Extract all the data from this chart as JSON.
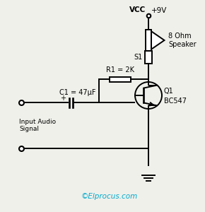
{
  "bg_color": "#f0f0eb",
  "line_color": "black",
  "text_color": "black",
  "cyan_color": "#00aacc",
  "watermark": "©Elprocus.com",
  "vcc_label": "VCC",
  "vcc_voltage": "+9V",
  "speaker_label": "8 Ohm\nSpeaker",
  "switch_label": "S1",
  "resistor_label": "R1 = 2K",
  "capacitor_label": "C1 = 47μF",
  "transistor_label": "BC547",
  "transistor_name": "Q1",
  "input_label": "Input Audio\nSignal",
  "lw": 1.4
}
